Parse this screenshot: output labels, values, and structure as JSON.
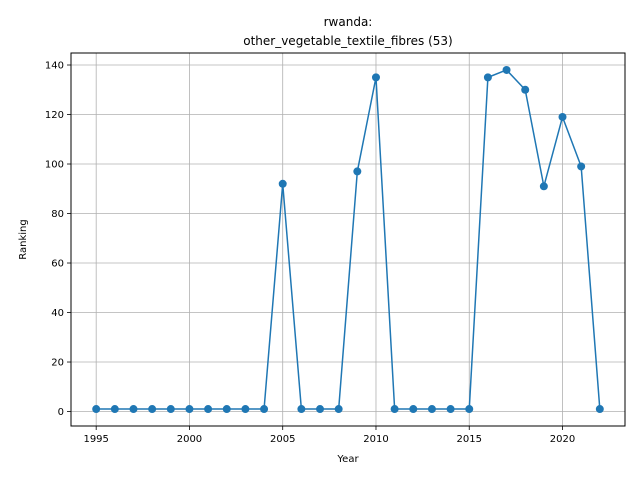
{
  "chart_data": {
    "type": "line",
    "title_line1": "rwanda:",
    "title_line2": "other_vegetable_textile_fibres (53)",
    "xlabel": "Year",
    "ylabel": "Ranking",
    "x": [
      1995,
      1996,
      1997,
      1998,
      1999,
      2000,
      2001,
      2002,
      2003,
      2004,
      2005,
      2006,
      2007,
      2008,
      2009,
      2010,
      2011,
      2012,
      2013,
      2014,
      2015,
      2016,
      2017,
      2018,
      2019,
      2020,
      2021,
      2022
    ],
    "series": [
      {
        "values": [
          1,
          1,
          1,
          1,
          1,
          1,
          1,
          1,
          1,
          1,
          92,
          1,
          1,
          1,
          97,
          135,
          1,
          1,
          1,
          1,
          1,
          135,
          138,
          130,
          91,
          119,
          99,
          1
        ],
        "color": "#1f77b4"
      }
    ],
    "xticks": [
      1995,
      2000,
      2005,
      2010,
      2015,
      2020
    ],
    "yticks": [
      0,
      20,
      40,
      60,
      80,
      100,
      120,
      140
    ],
    "xlim": [
      1993.65,
      2023.35
    ],
    "ylim": [
      -5.85,
      144.85
    ],
    "grid": true,
    "marker": "circle"
  }
}
